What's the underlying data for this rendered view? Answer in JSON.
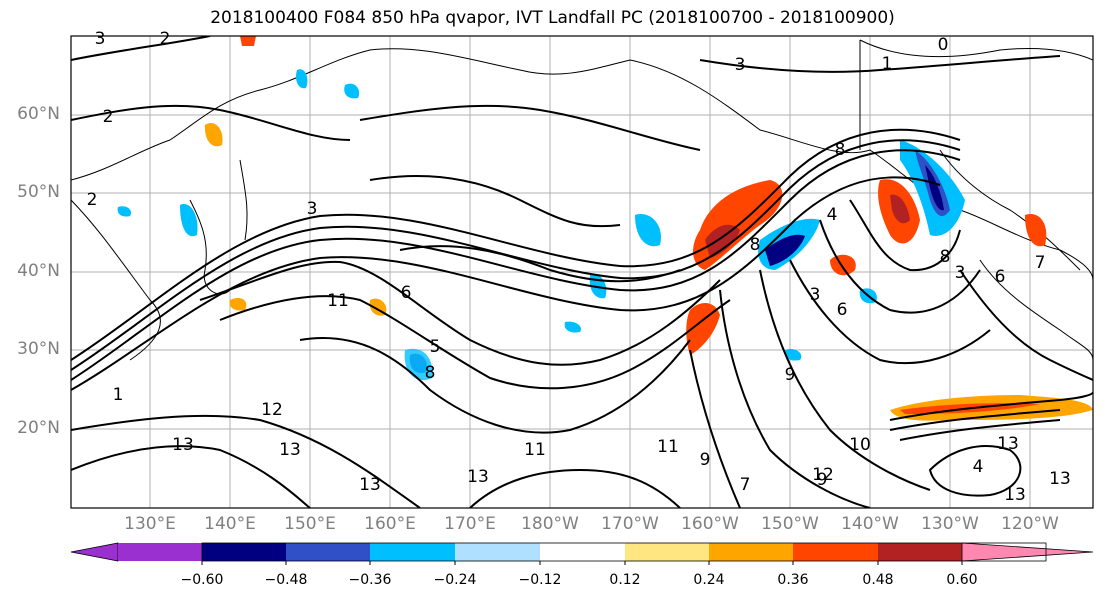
{
  "title": "2018100400 F084 850 hPa qvapor, IVT Landfall PC (2018100700 - 2018100900)",
  "lat_labels": [
    "60°N",
    "50°N",
    "40°N",
    "30°N",
    "20°N"
  ],
  "lon_labels": [
    "130°E",
    "140°E",
    "150°E",
    "160°E",
    "170°E",
    "180°W",
    "170°W",
    "160°W",
    "150°W",
    "140°W",
    "130°W",
    "120°W"
  ],
  "colorbar": {
    "ticks": [
      "−0.60",
      "−0.48",
      "−0.36",
      "−0.24",
      "−0.12",
      "0.12",
      "0.24",
      "0.36",
      "0.48",
      "0.60"
    ],
    "colors": [
      "#9b30d0",
      "#000080",
      "#3050c8",
      "#00bfff",
      "#b0e0ff",
      "#ffffff",
      "#ffe680",
      "#ffa500",
      "#ff4500",
      "#b22222",
      "#ff88b0"
    ]
  },
  "contour_labels": [
    "3",
    "2",
    "2",
    "3",
    "1",
    "0",
    "2",
    "3",
    "1",
    "8",
    "4",
    "3",
    "8",
    "5",
    "6",
    "6",
    "11",
    "12",
    "13",
    "13",
    "11",
    "13",
    "13",
    "9",
    "10",
    "11",
    "9",
    "7",
    "12",
    "13",
    "13",
    "13",
    "4",
    "3",
    "8",
    "6",
    "7",
    "8",
    "9"
  ]
}
